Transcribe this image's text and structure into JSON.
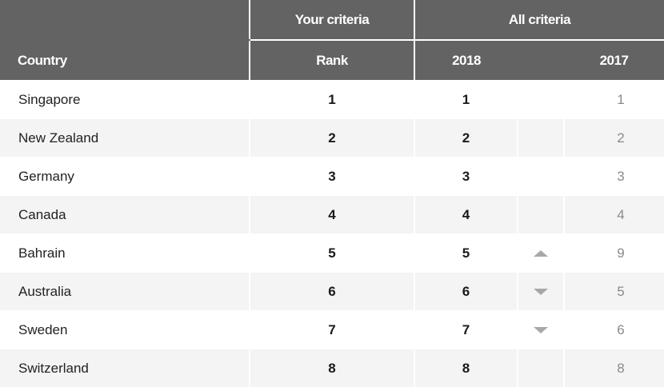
{
  "header": {
    "group_your_criteria": "Your criteria",
    "group_all_criteria": "All criteria",
    "col_country": "Country",
    "col_rank": "Rank",
    "col_2018": "2018",
    "col_2017": "2017"
  },
  "rows": [
    {
      "country": "Singapore",
      "rank": "1",
      "y2018": "1",
      "move": "none",
      "y2017": "1"
    },
    {
      "country": "New Zealand",
      "rank": "2",
      "y2018": "2",
      "move": "none",
      "y2017": "2"
    },
    {
      "country": "Germany",
      "rank": "3",
      "y2018": "3",
      "move": "none",
      "y2017": "3"
    },
    {
      "country": "Canada",
      "rank": "4",
      "y2018": "4",
      "move": "none",
      "y2017": "4"
    },
    {
      "country": "Bahrain",
      "rank": "5",
      "y2018": "5",
      "move": "up",
      "y2017": "9"
    },
    {
      "country": "Australia",
      "rank": "6",
      "y2018": "6",
      "move": "down",
      "y2017": "5"
    },
    {
      "country": "Sweden",
      "rank": "7",
      "y2018": "7",
      "move": "down",
      "y2017": "6"
    },
    {
      "country": "Switzerland",
      "rank": "8",
      "y2018": "8",
      "move": "none",
      "y2017": "8"
    }
  ],
  "colors": {
    "header_bg": "#636363",
    "row_alt_bg": "#f4f4f4",
    "arrow": "#a8a8a8"
  }
}
